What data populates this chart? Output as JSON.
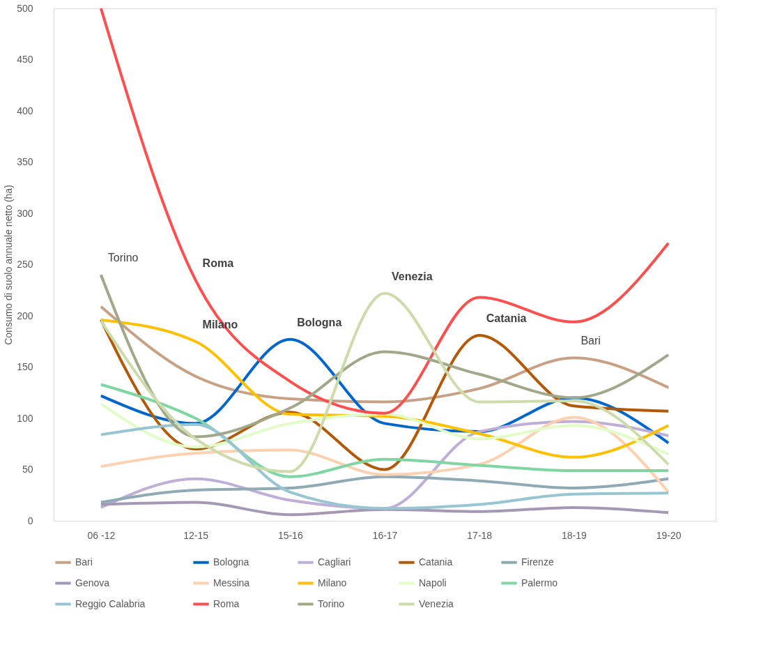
{
  "chart_data": {
    "type": "line",
    "ylabel": "Consumo di suolo annuale netto (ha)",
    "categories": [
      "06 -12",
      "12-15",
      "15-16",
      "16-17",
      "17-18",
      "18-19",
      "19-20"
    ],
    "ylim": [
      0,
      500
    ],
    "yticks": [
      0,
      50,
      100,
      150,
      200,
      250,
      300,
      350,
      400,
      450,
      500
    ],
    "grid": false,
    "legend": "bottom",
    "marker": "none",
    "line_style": "solid",
    "series": [
      {
        "name": "Bari",
        "color": "#c8a185",
        "values": [
          209,
          141,
          119,
          116,
          129,
          159,
          130
        ]
      },
      {
        "name": "Bologna",
        "color": "#0066cc",
        "values": [
          122,
          95,
          177,
          95,
          87,
          120,
          76
        ]
      },
      {
        "name": "Cagliari",
        "color": "#bfaed6",
        "values": [
          13,
          41,
          20,
          12,
          87,
          97,
          83
        ]
      },
      {
        "name": "Catania",
        "color": "#b35806",
        "values": [
          196,
          70,
          106,
          50,
          181,
          112,
          107
        ]
      },
      {
        "name": "Firenze",
        "color": "#8faab5",
        "values": [
          18,
          30,
          32,
          43,
          39,
          32,
          41
        ]
      },
      {
        "name": "Genova",
        "color": "#a598b5",
        "values": [
          16,
          18,
          6,
          11,
          9,
          13,
          8
        ]
      },
      {
        "name": "Messina",
        "color": "#fdd0b0",
        "values": [
          53,
          66,
          69,
          45,
          55,
          101,
          28
        ]
      },
      {
        "name": "Milano",
        "color": "#ffc000",
        "values": [
          196,
          175,
          104,
          102,
          85,
          62,
          93
        ]
      },
      {
        "name": "Napoli",
        "color": "#e2fcc8",
        "values": [
          114,
          72,
          95,
          104,
          80,
          93,
          65
        ]
      },
      {
        "name": "Palermo",
        "color": "#7fd6a3",
        "values": [
          133,
          100,
          43,
          60,
          54,
          49,
          49
        ]
      },
      {
        "name": "Reggio Calabria",
        "color": "#97c6d2",
        "values": [
          84,
          94,
          28,
          12,
          16,
          26,
          27
        ]
      },
      {
        "name": "Roma",
        "color": "#ff4f4f",
        "values": [
          500,
          235,
          136,
          105,
          218,
          194,
          271
        ]
      },
      {
        "name": "Torino",
        "color": "#a1a88a",
        "values": [
          240,
          82,
          110,
          165,
          143,
          120,
          162
        ]
      },
      {
        "name": "Venezia",
        "color": "#cddbab",
        "values": [
          195,
          80,
          48,
          222,
          116,
          117,
          55
        ]
      }
    ],
    "annotations": [
      {
        "text": "Torino",
        "x": "06 -12",
        "y": 240
      },
      {
        "text": "Roma",
        "x": "12-15",
        "y": 235
      },
      {
        "text": "Milano",
        "x": "12-15",
        "y": 175
      },
      {
        "text": "Bologna",
        "x": "15-16",
        "y": 177
      },
      {
        "text": "Venezia",
        "x": "16-17",
        "y": 222
      },
      {
        "text": "Catania",
        "x": "17-18",
        "y": 181
      },
      {
        "text": "Bari",
        "x": "18-19",
        "y": 159
      }
    ]
  }
}
